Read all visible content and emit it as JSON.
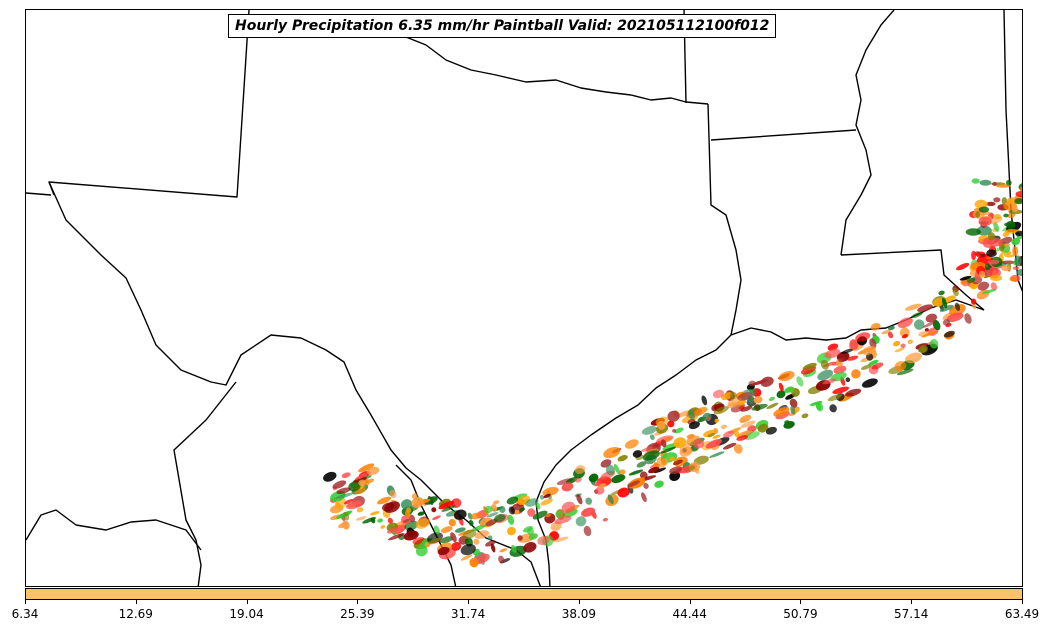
{
  "title": "Hourly Precipitation 6.35 mm/hr Paintball Valid: 202105112100f012",
  "colorbar": {
    "fill_color": "#ffc266",
    "tick_labels": [
      "6.34",
      "12.69",
      "19.04",
      "25.39",
      "31.74",
      "38.09",
      "44.44",
      "50.79",
      "57.14",
      "63.49"
    ]
  },
  "paintball_colors": [
    "#ff0000",
    "#ff7f00",
    "#ff9a3c",
    "#ffa500",
    "#8b0000",
    "#a52a2a",
    "#808000",
    "#2e8b57",
    "#006400",
    "#32cd32",
    "#ff4d4d",
    "#000000"
  ],
  "map": {
    "land_color": "#ffffff",
    "border_color": "#000000"
  }
}
